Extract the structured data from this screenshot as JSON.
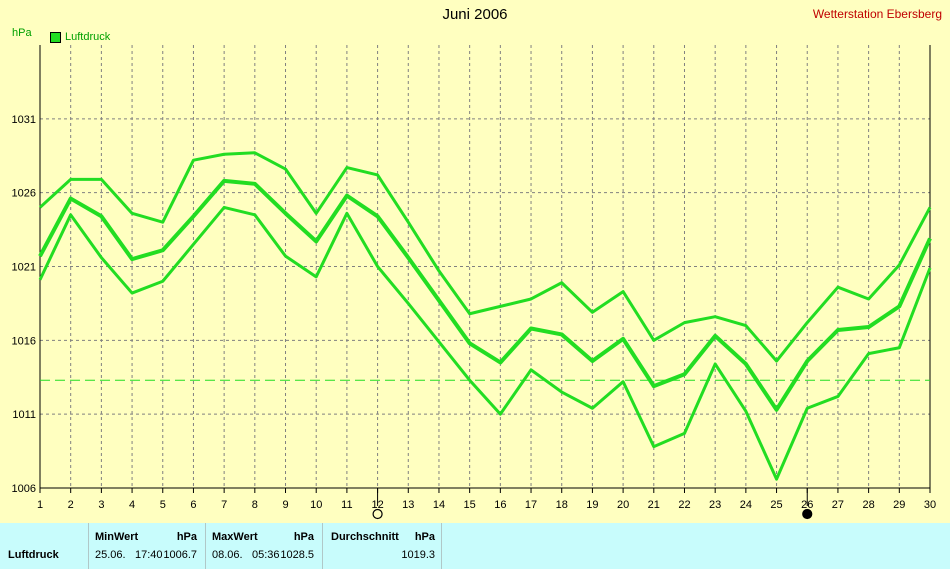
{
  "header": {
    "title": "Juni 2006",
    "station": "Wetterstation Ebersberg",
    "unit": "hPa",
    "legend": "Luftdruck"
  },
  "chart_data": {
    "type": "line",
    "title": "Juni 2006",
    "ylabel": "hPa",
    "ylim": [
      1006,
      1036
    ],
    "yticks": [
      1006,
      1011,
      1016,
      1021,
      1026,
      1031
    ],
    "xlim": [
      1,
      30
    ],
    "x": [
      1,
      2,
      3,
      4,
      5,
      6,
      7,
      8,
      9,
      10,
      11,
      12,
      13,
      14,
      15,
      16,
      17,
      18,
      19,
      20,
      21,
      22,
      23,
      24,
      25,
      26,
      27,
      28,
      29,
      30
    ],
    "average": 1013.3,
    "series": [
      {
        "name": "Luftdruck",
        "role": "max",
        "values": [
          1025,
          1026.9,
          1026.9,
          1024.6,
          1024,
          1028.2,
          1028.6,
          1028.7,
          1027.6,
          1024.6,
          1027.7,
          1027.2,
          1024,
          1020.7,
          1017.8,
          1018.3,
          1018.8,
          1019.9,
          1017.9,
          1019.3,
          1016,
          1017.2,
          1017.6,
          1017,
          1014.6,
          1017.2,
          1019.6,
          1018.8,
          1021.1,
          1025
        ]
      },
      {
        "name": "Luftdruck",
        "role": "mean",
        "values": [
          1021.7,
          1025.6,
          1024.4,
          1021.5,
          1022.1,
          1024.4,
          1026.8,
          1026.6,
          1024.6,
          1022.7,
          1025.8,
          1024.4,
          1021.6,
          1018.7,
          1015.8,
          1014.5,
          1016.8,
          1016.4,
          1014.6,
          1016.1,
          1012.9,
          1013.7,
          1016.3,
          1014.4,
          1011.3,
          1014.6,
          1016.7,
          1016.9,
          1018.3,
          1022.9
        ]
      },
      {
        "name": "Luftdruck",
        "role": "min",
        "values": [
          1020.1,
          1024.5,
          1021.6,
          1019.2,
          1020,
          1022.5,
          1025,
          1024.5,
          1021.7,
          1020.3,
          1024.6,
          1021,
          1018.5,
          1015.9,
          1013.3,
          1011,
          1014,
          1012.5,
          1011.4,
          1013.2,
          1008.8,
          1009.7,
          1014.4,
          1011.2,
          1006.6,
          1011.4,
          1012.2,
          1015.1,
          1015.5,
          1020.9
        ]
      }
    ],
    "markers": [
      {
        "x": 12,
        "symbol": "open-circle"
      },
      {
        "x": 26,
        "symbol": "filled-circle"
      }
    ],
    "grid": true,
    "legend_position": "top-left"
  },
  "stats": {
    "row_label": "Luftdruck",
    "min": {
      "header": "MinWert",
      "unit": "hPa",
      "date": "25.06.",
      "time": "17:40",
      "value": "1006.7"
    },
    "max": {
      "header": "MaxWert",
      "unit": "hPa",
      "date": "08.06.",
      "time": "05:36",
      "value": "1028.5"
    },
    "avg": {
      "header": "Durchschnitt",
      "unit": "hPa",
      "value": "1019.3"
    }
  },
  "colors": {
    "background": "#ffffc0",
    "line": "#22dd22",
    "footer": "#c8fcfc",
    "station": "#c00000"
  }
}
